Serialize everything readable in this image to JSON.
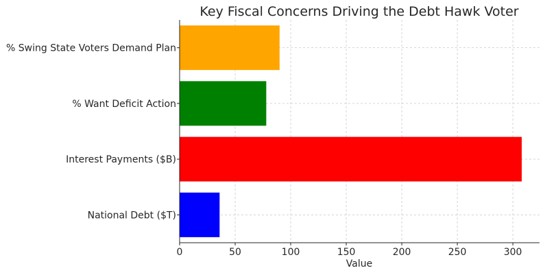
{
  "chart_data": {
    "type": "bar",
    "orientation": "horizontal",
    "title": "Key Fiscal Concerns Driving the Debt Hawk Voter",
    "xlabel": "Value",
    "ylabel": "",
    "categories": [
      "National Debt ($T)",
      "Interest Payments ($B)",
      "% Want Deficit Action",
      "% Swing State Voters Demand Plan"
    ],
    "values": [
      36,
      308,
      78,
      90
    ],
    "colors": [
      "#0000ff",
      "#ff0000",
      "#008000",
      "#ffa500"
    ],
    "xlim": [
      0,
      324
    ],
    "xticks": [
      0,
      50,
      100,
      150,
      200,
      250,
      300
    ],
    "xtick_labels": [
      "0",
      "50",
      "100",
      "150",
      "200",
      "250",
      "300"
    ],
    "grid": true,
    "legend": "none"
  }
}
